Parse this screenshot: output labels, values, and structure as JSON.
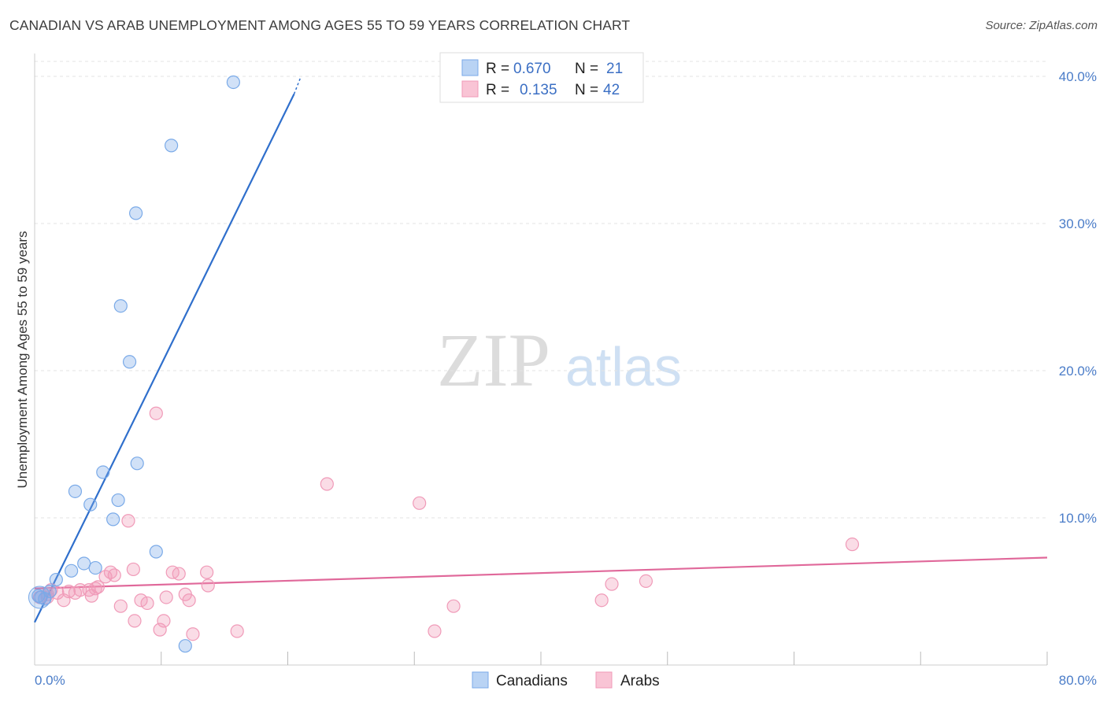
{
  "title": "CANADIAN VS ARAB UNEMPLOYMENT AMONG AGES 55 TO 59 YEARS CORRELATION CHART",
  "source": "Source: ZipAtlas.com",
  "watermark": {
    "zip": "ZIP",
    "atlas": "atlas"
  },
  "legend": {
    "r_label": "R =",
    "n_label": "N =",
    "canadians": {
      "r": "0.670",
      "n": "21"
    },
    "arabs": {
      "r": "0.135",
      "n": "42"
    }
  },
  "bottom_legend": {
    "canadians": "Canadians",
    "arabs": "Arabs"
  },
  "chart_data": {
    "type": "scatter",
    "title": "CANADIAN VS ARAB UNEMPLOYMENT AMONG AGES 55 TO 59 YEARS CORRELATION CHART",
    "xlabel": "",
    "ylabel": "Unemployment Among Ages 55 to 59 years",
    "xlim": [
      0,
      80
    ],
    "ylim": [
      0,
      42
    ],
    "x_tick_labels": [
      "0.0%",
      "80.0%"
    ],
    "y_ticks": [
      10,
      20,
      30,
      40
    ],
    "y_tick_labels": [
      "10.0%",
      "20.0%",
      "30.0%",
      "40.0%"
    ],
    "colors": {
      "canadians": "#7aaae8",
      "canadians_line": "#2f6fcc",
      "arabs": "#f09ab8",
      "arabs_line": "#e0689a"
    },
    "series": [
      {
        "name": "Canadians",
        "points": [
          [
            0.3,
            4.7
          ],
          [
            0.8,
            4.5
          ],
          [
            1.2,
            5.0
          ],
          [
            1.7,
            5.8
          ],
          [
            2.9,
            6.4
          ],
          [
            3.2,
            11.8
          ],
          [
            3.9,
            6.9
          ],
          [
            4.4,
            10.9
          ],
          [
            4.8,
            6.6
          ],
          [
            5.4,
            13.1
          ],
          [
            6.2,
            9.9
          ],
          [
            6.6,
            11.2
          ],
          [
            6.8,
            24.4
          ],
          [
            7.5,
            20.6
          ],
          [
            8.0,
            30.7
          ],
          [
            8.1,
            13.7
          ],
          [
            9.6,
            7.7
          ],
          [
            10.8,
            35.3
          ],
          [
            11.9,
            1.3
          ],
          [
            15.7,
            39.6
          ],
          [
            0.5,
            4.6
          ]
        ],
        "trend": {
          "x": [
            0,
            20.5
          ],
          "y": [
            2.9,
            38.8
          ]
        },
        "trend_dashed": {
          "x": [
            20.5,
            21.0
          ],
          "y": [
            38.8,
            39.9
          ]
        }
      },
      {
        "name": "Arabs",
        "points": [
          [
            0.4,
            4.6
          ],
          [
            1.0,
            4.8
          ],
          [
            1.3,
            5.1
          ],
          [
            1.8,
            4.9
          ],
          [
            2.3,
            4.4
          ],
          [
            2.7,
            5.0
          ],
          [
            3.2,
            4.9
          ],
          [
            3.6,
            5.1
          ],
          [
            4.3,
            5.1
          ],
          [
            4.5,
            4.7
          ],
          [
            4.8,
            5.2
          ],
          [
            5.0,
            5.3
          ],
          [
            5.6,
            6.0
          ],
          [
            6.0,
            6.3
          ],
          [
            6.3,
            6.1
          ],
          [
            6.8,
            4.0
          ],
          [
            7.4,
            9.8
          ],
          [
            7.8,
            6.5
          ],
          [
            7.9,
            3.0
          ],
          [
            8.4,
            4.4
          ],
          [
            8.9,
            4.2
          ],
          [
            9.6,
            17.1
          ],
          [
            9.9,
            2.4
          ],
          [
            10.2,
            3.0
          ],
          [
            10.4,
            4.6
          ],
          [
            10.9,
            6.3
          ],
          [
            11.4,
            6.2
          ],
          [
            11.9,
            4.8
          ],
          [
            12.2,
            4.4
          ],
          [
            12.5,
            2.1
          ],
          [
            13.6,
            6.3
          ],
          [
            13.7,
            5.4
          ],
          [
            16.0,
            2.3
          ],
          [
            23.1,
            12.3
          ],
          [
            30.4,
            11.0
          ],
          [
            31.6,
            2.3
          ],
          [
            33.1,
            4.0
          ],
          [
            44.8,
            4.4
          ],
          [
            45.6,
            5.5
          ],
          [
            48.3,
            5.7
          ],
          [
            64.6,
            8.2
          ],
          [
            1.0,
            4.6
          ]
        ],
        "trend": {
          "x": [
            0,
            80
          ],
          "y": [
            5.2,
            7.3
          ]
        }
      }
    ]
  }
}
